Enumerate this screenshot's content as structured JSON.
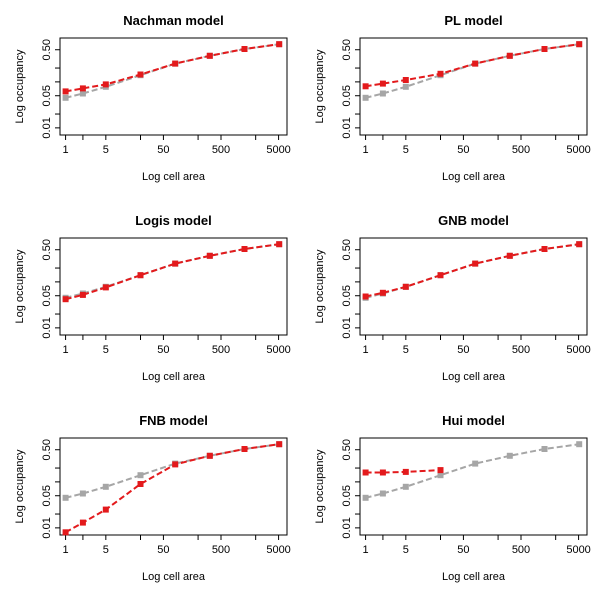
{
  "chart_data": [
    {
      "type": "line",
      "title": "Nachman model",
      "xlabel": "Log cell area",
      "ylabel": "Log occupancy",
      "xscale": "log",
      "yscale": "log",
      "xlim": [
        0.8,
        7000
      ],
      "ylim": [
        0.007,
        0.9
      ],
      "x_ticks": [
        1,
        5,
        50,
        500,
        5000
      ],
      "y_ticks": [
        0.01,
        0.05,
        0.5
      ],
      "x": [
        1,
        2,
        5,
        20,
        80,
        320,
        1280,
        5120
      ],
      "series": [
        {
          "color": "#a6a6a6",
          "style": "dashed",
          "values": [
            0.045,
            0.056,
            0.078,
            0.14,
            0.25,
            0.37,
            0.52,
            0.66
          ]
        },
        {
          "color": "#e31a1c",
          "style": "dashed",
          "values": [
            0.062,
            0.072,
            0.088,
            0.145,
            0.25,
            0.37,
            0.52,
            0.66
          ]
        }
      ]
    },
    {
      "type": "line",
      "title": "PL model",
      "xlabel": "Log cell area",
      "ylabel": "Log occupancy",
      "xscale": "log",
      "yscale": "log",
      "xlim": [
        0.8,
        7000
      ],
      "ylim": [
        0.007,
        0.9
      ],
      "x_ticks": [
        1,
        5,
        50,
        500,
        5000
      ],
      "y_ticks": [
        0.01,
        0.05,
        0.5
      ],
      "x": [
        1,
        2,
        5,
        20,
        80,
        320,
        1280,
        5120
      ],
      "series": [
        {
          "color": "#a6a6a6",
          "style": "dashed",
          "values": [
            0.045,
            0.056,
            0.078,
            0.14,
            0.25,
            0.37,
            0.52,
            0.66
          ]
        },
        {
          "color": "#e31a1c",
          "style": "dashed",
          "values": [
            0.08,
            0.092,
            0.11,
            0.15,
            0.25,
            0.37,
            0.52,
            0.66
          ]
        }
      ]
    },
    {
      "type": "line",
      "title": "Logis model",
      "xlabel": "Log cell area",
      "ylabel": "Log occupancy",
      "xscale": "log",
      "yscale": "log",
      "xlim": [
        0.8,
        7000
      ],
      "ylim": [
        0.007,
        0.9
      ],
      "x_ticks": [
        1,
        5,
        50,
        500,
        5000
      ],
      "y_ticks": [
        0.01,
        0.05,
        0.5
      ],
      "x": [
        1,
        2,
        5,
        20,
        80,
        320,
        1280,
        5120
      ],
      "series": [
        {
          "color": "#a6a6a6",
          "style": "dashed",
          "values": [
            0.045,
            0.056,
            0.078,
            0.14,
            0.25,
            0.37,
            0.52,
            0.66
          ]
        },
        {
          "color": "#e31a1c",
          "style": "dashed",
          "values": [
            0.042,
            0.052,
            0.076,
            0.14,
            0.25,
            0.37,
            0.52,
            0.66
          ]
        }
      ]
    },
    {
      "type": "line",
      "title": "GNB model",
      "xlabel": "Log cell area",
      "ylabel": "Log occupancy",
      "xscale": "log",
      "yscale": "log",
      "xlim": [
        0.8,
        7000
      ],
      "ylim": [
        0.007,
        0.9
      ],
      "x_ticks": [
        1,
        5,
        50,
        500,
        5000
      ],
      "y_ticks": [
        0.01,
        0.05,
        0.5
      ],
      "x": [
        1,
        2,
        5,
        20,
        80,
        320,
        1280,
        5120
      ],
      "series": [
        {
          "color": "#a6a6a6",
          "style": "dashed",
          "values": [
            0.045,
            0.056,
            0.078,
            0.14,
            0.25,
            0.37,
            0.52,
            0.66
          ]
        },
        {
          "color": "#e31a1c",
          "style": "dashed",
          "values": [
            0.048,
            0.058,
            0.078,
            0.14,
            0.25,
            0.37,
            0.52,
            0.66
          ]
        }
      ]
    },
    {
      "type": "line",
      "title": "FNB model",
      "xlabel": "Log cell area",
      "ylabel": "Log occupancy",
      "xscale": "log",
      "yscale": "log",
      "xlim": [
        0.8,
        7000
      ],
      "ylim": [
        0.007,
        0.9
      ],
      "x_ticks": [
        1,
        5,
        50,
        500,
        5000
      ],
      "y_ticks": [
        0.01,
        0.05,
        0.5
      ],
      "x": [
        1,
        2,
        5,
        20,
        80,
        320,
        1280,
        5120
      ],
      "series": [
        {
          "color": "#a6a6a6",
          "style": "dashed",
          "values": [
            0.045,
            0.056,
            0.078,
            0.14,
            0.25,
            0.37,
            0.52,
            0.66
          ]
        },
        {
          "color": "#e31a1c",
          "style": "dashed",
          "values": [
            0.008,
            0.013,
            0.025,
            0.09,
            0.24,
            0.37,
            0.52,
            0.66
          ]
        }
      ]
    },
    {
      "type": "line",
      "title": "Hui model",
      "xlabel": "Log cell area",
      "ylabel": "Log occupancy",
      "xscale": "log",
      "yscale": "log",
      "xlim": [
        0.8,
        7000
      ],
      "ylim": [
        0.007,
        0.9
      ],
      "x_ticks": [
        1,
        5,
        50,
        500,
        5000
      ],
      "y_ticks": [
        0.01,
        0.05,
        0.5
      ],
      "x": [
        1,
        2,
        5,
        20,
        80,
        320,
        1280,
        5120
      ],
      "series": [
        {
          "color": "#a6a6a6",
          "style": "dashed",
          "values": [
            0.045,
            0.056,
            0.078,
            0.14,
            0.25,
            0.37,
            0.52,
            0.66
          ]
        },
        {
          "color": "#e31a1c",
          "style": "dashed",
          "values": [
            0.16,
            0.16,
            0.165,
            0.18,
            null,
            null,
            null,
            null
          ]
        }
      ]
    }
  ]
}
